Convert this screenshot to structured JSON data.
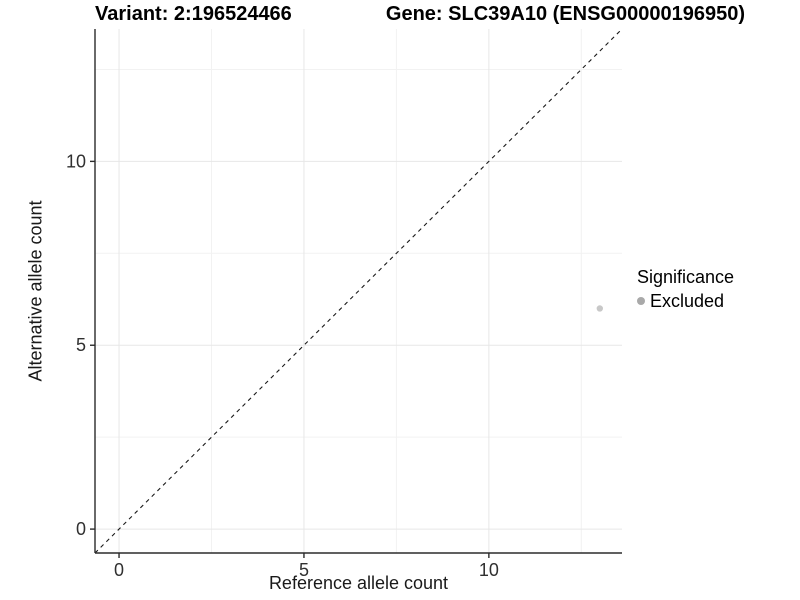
{
  "figure": {
    "title_left": "Variant: 2:196524466",
    "title_right": "Gene: SLC39A10 (ENSG00000196950)"
  },
  "legend": {
    "title": "Significance",
    "items": [
      {
        "label": "Excluded",
        "color": "#a9a9a9"
      }
    ]
  },
  "chart_data": {
    "type": "scatter",
    "title": "Variant: 2:196524466 / Gene: SLC39A10 (ENSG00000196950)",
    "xlabel": "Reference allele count",
    "ylabel": "Alternative allele count",
    "xlim": [
      -0.65,
      13.6
    ],
    "ylim": [
      -0.65,
      13.6
    ],
    "x_major_ticks": [
      0,
      5,
      10
    ],
    "y_major_ticks": [
      0,
      5,
      10
    ],
    "x_minor_ticks": [
      2.5,
      7.5,
      12.5
    ],
    "y_minor_ticks": [
      2.5,
      7.5,
      12.5
    ],
    "grid": "major+minor",
    "legend_position": "right",
    "reference_line": {
      "style": "dashed",
      "slope": 1,
      "intercept": 0
    },
    "series": [
      {
        "name": "Excluded",
        "color": "#c8c8c8",
        "points": [
          {
            "x": 13,
            "y": 6
          }
        ]
      }
    ]
  },
  "colors": {
    "background": "#ffffff",
    "grid_major": "#e7e7e7",
    "grid_minor": "#f2f2f2",
    "axis_line": "#2b2b2b",
    "tick_label": "#303030",
    "reference_line": "#1a1a1a"
  }
}
